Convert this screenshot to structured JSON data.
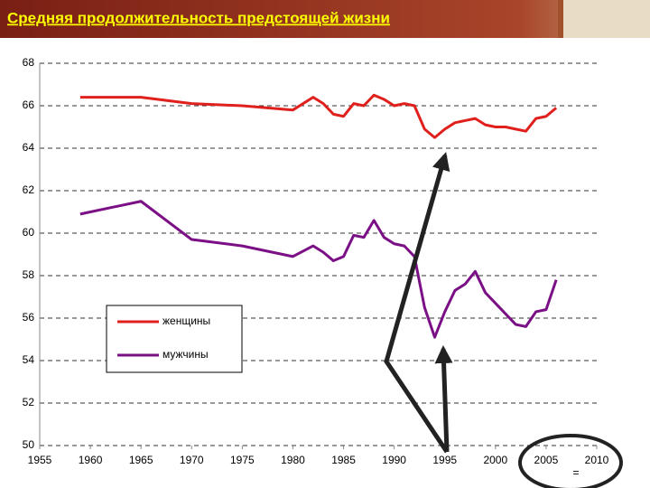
{
  "chart_data": {
    "type": "line",
    "title": "Средняя продолжительность предстоящей жизни",
    "x": [
      1959,
      1965,
      1970,
      1975,
      1980,
      1982,
      1983,
      1984,
      1985,
      1986,
      1987,
      1988,
      1989,
      1990,
      1991,
      1992,
      1993,
      1994,
      1995,
      1996,
      1997,
      1998,
      1999,
      2000,
      2001,
      2002,
      2003,
      2004,
      2005,
      2006
    ],
    "series": [
      {
        "name": "женщины",
        "color": "#e0201c",
        "values": [
          66.4,
          66.4,
          66.1,
          66.0,
          65.8,
          66.4,
          66.1,
          65.6,
          65.5,
          66.1,
          66.0,
          66.5,
          66.3,
          66.0,
          66.1,
          66.0,
          64.9,
          64.5,
          64.9,
          65.2,
          65.3,
          65.4,
          65.1,
          65.0,
          65.0,
          64.9,
          64.8,
          65.4,
          65.5,
          65.9
        ]
      },
      {
        "name": "мужчины",
        "color": "#7b0f86",
        "values": [
          60.9,
          61.5,
          59.7,
          59.4,
          58.9,
          59.4,
          59.1,
          58.7,
          58.9,
          59.9,
          59.8,
          60.6,
          59.8,
          59.5,
          59.4,
          58.9,
          56.5,
          55.1,
          56.3,
          57.3,
          57.6,
          58.2,
          57.2,
          56.7,
          56.2,
          55.7,
          55.6,
          56.3,
          56.4,
          57.8
        ]
      }
    ],
    "xlim": [
      1955,
      2010
    ],
    "xticks": [
      1955,
      1960,
      1965,
      1970,
      1975,
      1980,
      1985,
      1990,
      1995,
      2000,
      2005,
      2010
    ],
    "ylim": [
      50,
      68
    ],
    "yticks": [
      50,
      52,
      54,
      56,
      58,
      60,
      62,
      64,
      66,
      68
    ],
    "grid": true,
    "annotation": "="
  }
}
